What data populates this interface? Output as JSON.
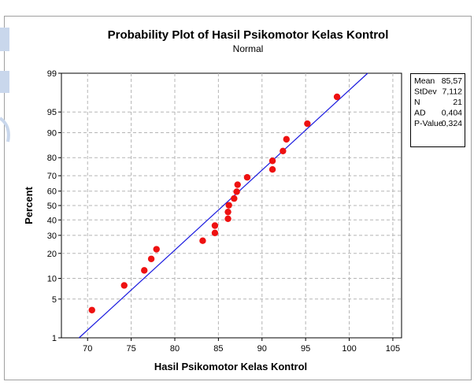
{
  "chart_data": {
    "type": "scatter",
    "subtype": "normal-probability-plot",
    "title": "Probability Plot of Hasil Psikomotor Kelas Kontrol",
    "subtitle": "Normal",
    "xlabel": "Hasil Psikomotor Kelas Kontrol",
    "ylabel": "Percent",
    "xlim": [
      67,
      106
    ],
    "ylim_percent": [
      1,
      99
    ],
    "y_scale": "normal-probability",
    "grid": true,
    "x_ticks": [
      70,
      75,
      80,
      85,
      90,
      95,
      100,
      105
    ],
    "y_ticks": [
      1,
      5,
      10,
      20,
      30,
      40,
      50,
      60,
      70,
      80,
      90,
      95,
      99
    ],
    "fit_line": {
      "mean": 85.57,
      "stdev": 7.112,
      "color": "#1a1adf"
    },
    "point_color": "#ee1111",
    "points": [
      {
        "x": 70.5,
        "p": 3.3
      },
      {
        "x": 74.2,
        "p": 8.0
      },
      {
        "x": 76.5,
        "p": 12.7
      },
      {
        "x": 77.3,
        "p": 17.4
      },
      {
        "x": 77.9,
        "p": 22.1
      },
      {
        "x": 83.2,
        "p": 26.8
      },
      {
        "x": 84.6,
        "p": 31.5
      },
      {
        "x": 84.6,
        "p": 36.2
      },
      {
        "x": 86.1,
        "p": 40.8
      },
      {
        "x": 86.1,
        "p": 45.5
      },
      {
        "x": 86.2,
        "p": 50.2
      },
      {
        "x": 86.8,
        "p": 54.9
      },
      {
        "x": 87.1,
        "p": 59.6
      },
      {
        "x": 87.2,
        "p": 64.3
      },
      {
        "x": 88.3,
        "p": 69.0
      },
      {
        "x": 91.2,
        "p": 73.7
      },
      {
        "x": 91.2,
        "p": 78.4
      },
      {
        "x": 92.4,
        "p": 83.1
      },
      {
        "x": 92.8,
        "p": 87.8
      },
      {
        "x": 95.2,
        "p": 92.5
      },
      {
        "x": 98.6,
        "p": 97.2
      }
    ],
    "stats": [
      {
        "label": "Mean",
        "value": "85,57"
      },
      {
        "label": "StDev",
        "value": "7,112"
      },
      {
        "label": "N",
        "value": "21"
      },
      {
        "label": "AD",
        "value": "0,404"
      },
      {
        "label": "P-Value",
        "value": "0,324"
      }
    ]
  }
}
